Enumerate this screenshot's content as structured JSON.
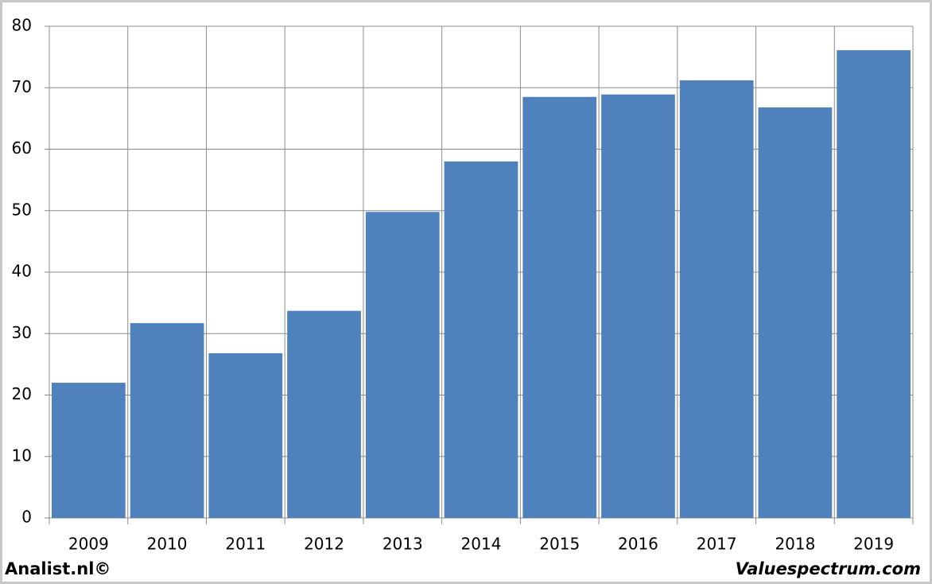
{
  "chart_data": {
    "type": "bar",
    "categories": [
      "2009",
      "2010",
      "2011",
      "2012",
      "2013",
      "2014",
      "2015",
      "2016",
      "2017",
      "2018",
      "2019"
    ],
    "values": [
      22,
      31.7,
      26.8,
      33.7,
      49.8,
      58,
      68.5,
      68.9,
      71.2,
      66.8,
      76.1
    ],
    "color": "#4f81bd",
    "ylim": [
      0,
      80
    ],
    "yticks": [
      0,
      10,
      20,
      30,
      40,
      50,
      60,
      70,
      80
    ],
    "grid": true,
    "credits": [
      "Analist.nl©",
      "Valuespectrum.com"
    ]
  }
}
